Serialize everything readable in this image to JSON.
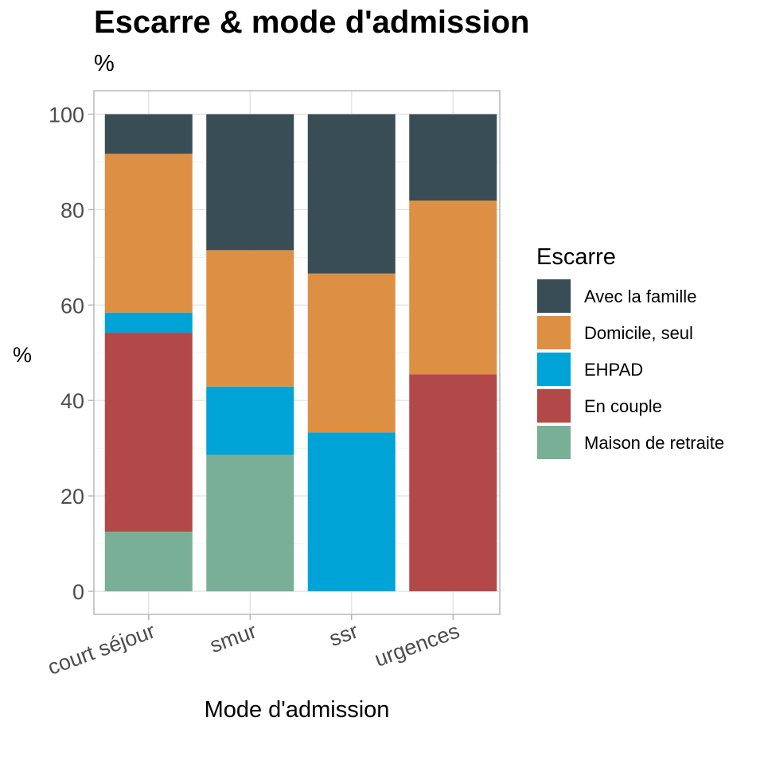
{
  "chart_data": {
    "type": "bar",
    "stacked": true,
    "title": "Escarre & mode d'admission",
    "subtitle": "%",
    "xlabel": "Mode d'admission",
    "ylabel": "%",
    "ylim": [
      0,
      100
    ],
    "yticks": [
      0,
      20,
      40,
      60,
      80,
      100
    ],
    "grid": true,
    "legend": {
      "title": "Escarre",
      "placement": "right"
    },
    "categories": [
      "court séjour",
      "smur",
      "ssr",
      "urgences"
    ],
    "series": [
      {
        "name": "Maison de retraite",
        "color": "#7AAF97",
        "values": [
          12.5,
          28.6,
          0,
          0
        ]
      },
      {
        "name": "En couple",
        "color": "#B34848",
        "values": [
          41.7,
          0,
          0,
          45.5
        ]
      },
      {
        "name": "EHPAD",
        "color": "#00A3D6",
        "values": [
          4.2,
          14.3,
          33.3,
          0
        ]
      },
      {
        "name": "Domicile, seul",
        "color": "#DD9043",
        "values": [
          33.3,
          28.6,
          33.3,
          36.4
        ]
      },
      {
        "name": "Avec la famille",
        "color": "#384D54",
        "values": [
          8.3,
          28.5,
          33.4,
          18.1
        ]
      }
    ]
  }
}
